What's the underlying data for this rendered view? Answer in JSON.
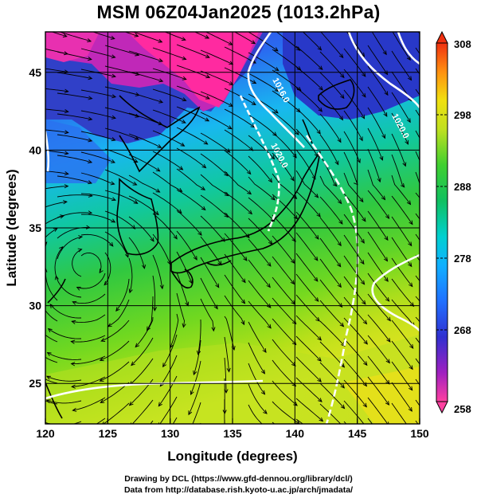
{
  "title": "MSM 06Z04Jan2025 (1013.2hPa)",
  "x_axis": {
    "label": "Longitude (degrees)",
    "min": 120,
    "max": 150,
    "ticks": [
      "120",
      "125",
      "130",
      "135",
      "140",
      "145",
      "150"
    ]
  },
  "y_axis": {
    "label": "Latitude  (degrees)",
    "min": 22.4,
    "max": 47.6,
    "ticks": [
      "25",
      "30",
      "35",
      "40",
      "45"
    ]
  },
  "colorbar": {
    "min": 258,
    "max": 308,
    "ticks": [
      "308",
      "298",
      "288",
      "278",
      "268",
      "258"
    ]
  },
  "contour_labels": [
    "1016.0",
    "1020.0",
    "1020.0"
  ],
  "credits": {
    "line1": "Drawing by DCL (https://www.gfd-dennou.org/library/dcl/)",
    "line2": "Data from http://database.rish.kyoto-u.ac.jp/arch/jmadata/"
  },
  "colors": {
    "frame": "#000000",
    "contour": "#ffffff",
    "streamline": "#000000"
  }
}
